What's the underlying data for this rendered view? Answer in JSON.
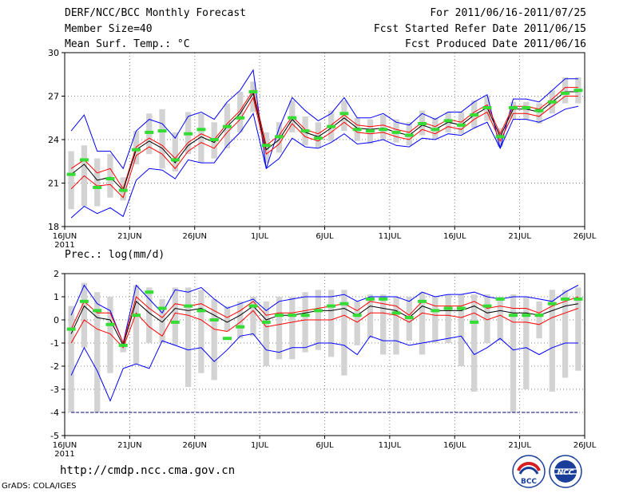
{
  "header": {
    "title": "DERF/NCC/BCC Monthly Forecast",
    "member_size": "Member Size=40",
    "variable": "Mean Surf. Temp.: °C",
    "period": "For 2011/06/16-2011/07/25",
    "started": "Fcst Started Refer Date 2011/06/15",
    "produced": "Fcst Produced Date 2011/06/16"
  },
  "footer": {
    "url": "http://cmdp.ncc.cma.gov.cn",
    "credit": "GrADS: COLA/IGES",
    "logo_left_text": "BCC",
    "logo_right_text": "NCC"
  },
  "colors": {
    "envelope": "#0000ff",
    "spread": "#ff0000",
    "mean": "#000000",
    "box": "#d3d3d3",
    "marker": "#33dd33",
    "missing": "#000080"
  },
  "chart_data": [
    {
      "type": "line",
      "title": "Mean Surf. Temp.: °C",
      "ylim": [
        18,
        30
      ],
      "yticks": [
        18,
        21,
        24,
        27,
        30
      ],
      "x_ticks": [
        {
          "day": 0,
          "label": "16JUN",
          "sub": "2011"
        },
        {
          "day": 5,
          "label": "21JUN"
        },
        {
          "day": 10,
          "label": "26JUN"
        },
        {
          "day": 15,
          "label": "1JUL"
        },
        {
          "day": 20,
          "label": "6JUL"
        },
        {
          "day": 25,
          "label": "11JUL"
        },
        {
          "day": 30,
          "label": "16JUL"
        },
        {
          "day": 35,
          "label": "21JUL"
        },
        {
          "day": 40,
          "label": "26JUL"
        }
      ],
      "days": [
        0,
        1,
        2,
        3,
        4,
        5,
        6,
        7,
        8,
        9,
        10,
        11,
        12,
        13,
        14,
        15,
        16,
        17,
        18,
        19,
        20,
        21,
        22,
        23,
        24,
        25,
        26,
        27,
        28,
        29,
        30,
        31,
        32,
        33,
        34,
        35,
        36,
        37,
        38,
        39
      ],
      "series": [
        {
          "name": "max",
          "values": [
            24.6,
            25.7,
            23.2,
            23.2,
            22.0,
            24.6,
            25.4,
            25.1,
            24.1,
            25.6,
            25.9,
            25.4,
            26.6,
            27.4,
            28.8,
            22.0,
            24.8,
            26.9,
            26.0,
            25.3,
            25.8,
            26.9,
            25.5,
            25.5,
            25.8,
            25.2,
            25.0,
            25.8,
            25.4,
            25.9,
            25.9,
            26.6,
            27.1,
            23.4,
            26.8,
            26.8,
            26.6,
            27.4,
            28.2,
            28.2
          ]
        },
        {
          "name": "upper",
          "values": [
            22.0,
            22.6,
            21.7,
            22.0,
            20.6,
            23.5,
            24.1,
            23.6,
            22.7,
            23.8,
            24.4,
            24.0,
            25.1,
            26.0,
            27.4,
            23.6,
            24.3,
            25.6,
            24.7,
            24.4,
            25.0,
            25.7,
            25.0,
            24.9,
            25.0,
            24.7,
            24.5,
            25.2,
            24.9,
            25.4,
            25.2,
            25.9,
            26.4,
            24.4,
            26.3,
            26.3,
            26.1,
            26.8,
            27.6,
            27.6
          ]
        },
        {
          "name": "mean",
          "values": [
            21.6,
            22.3,
            21.2,
            21.4,
            20.5,
            23.3,
            23.9,
            23.4,
            22.4,
            23.6,
            24.2,
            23.8,
            24.9,
            25.8,
            27.2,
            23.3,
            24.0,
            25.4,
            24.5,
            24.2,
            24.8,
            25.5,
            24.8,
            24.7,
            24.8,
            24.5,
            24.3,
            25.0,
            24.7,
            25.2,
            25.0,
            25.7,
            26.2,
            24.2,
            26.1,
            26.1,
            25.9,
            26.6,
            27.3,
            27.3
          ]
        },
        {
          "name": "lower",
          "values": [
            20.6,
            21.5,
            20.8,
            20.9,
            20.0,
            22.9,
            23.5,
            23.0,
            22.0,
            23.2,
            23.8,
            23.4,
            24.5,
            25.4,
            26.9,
            23.0,
            23.7,
            25.1,
            24.2,
            23.9,
            24.5,
            25.2,
            24.5,
            24.4,
            24.5,
            24.2,
            24.0,
            24.7,
            24.4,
            24.9,
            24.7,
            25.4,
            25.9,
            23.9,
            25.8,
            25.8,
            25.6,
            26.3,
            27.0,
            27.0
          ]
        },
        {
          "name": "min",
          "values": [
            18.6,
            19.4,
            18.9,
            19.3,
            18.7,
            21.2,
            22.0,
            21.9,
            21.3,
            22.6,
            22.4,
            22.4,
            23.6,
            24.5,
            25.8,
            22.0,
            22.7,
            24.1,
            23.5,
            23.4,
            23.8,
            24.4,
            23.7,
            23.8,
            24.0,
            23.6,
            23.5,
            24.1,
            24.0,
            24.4,
            24.3,
            24.8,
            25.2,
            23.4,
            25.4,
            25.4,
            25.2,
            25.6,
            26.1,
            26.3
          ]
        }
      ],
      "boxes": {
        "top": [
          23.2,
          23.6,
          22.7,
          23.0,
          21.4,
          24.6,
          25.8,
          26.1,
          24.5,
          25.9,
          25.8,
          25.2,
          26.5,
          27.3,
          28.0,
          24.5,
          25.2,
          26.7,
          25.6,
          25.2,
          26.0,
          26.7,
          25.5,
          25.4,
          25.7,
          25.4,
          25.2,
          26.0,
          25.5,
          25.9,
          25.9,
          26.7,
          27.0,
          24.8,
          26.6,
          26.6,
          26.5,
          27.4,
          28.3,
          28.3
        ],
        "bottom": [
          19.2,
          19.4,
          19.4,
          20.0,
          19.8,
          22.3,
          23.0,
          22.0,
          21.8,
          23.0,
          22.4,
          22.7,
          23.4,
          24.5,
          25.9,
          22.4,
          23.1,
          24.5,
          23.6,
          23.4,
          23.9,
          24.6,
          23.9,
          23.7,
          24.0,
          23.8,
          23.6,
          24.3,
          24.0,
          24.5,
          24.4,
          24.8,
          25.3,
          23.5,
          25.4,
          25.4,
          25.1,
          25.8,
          26.5,
          26.5
        ]
      },
      "markers": [
        21.6,
        22.6,
        20.7,
        21.3,
        20.5,
        23.3,
        24.5,
        24.6,
        22.6,
        24.4,
        24.7,
        24.0,
        24.9,
        25.5,
        27.3,
        23.6,
        24.2,
        25.5,
        24.6,
        24.1,
        24.9,
        25.8,
        24.7,
        24.6,
        24.7,
        24.5,
        24.3,
        25.1,
        24.7,
        25.3,
        25.0,
        25.7,
        26.2,
        24.2,
        26.2,
        26.2,
        26.0,
        26.6,
        27.2,
        27.4
      ]
    },
    {
      "type": "line",
      "title": "Prec.: log(mm/d)",
      "ylim": [
        -5,
        2
      ],
      "yticks": [
        -5,
        -4,
        -3,
        -2,
        -1,
        0,
        1,
        2
      ],
      "x_ticks": [
        {
          "day": 0,
          "label": "16JUN",
          "sub": "2011"
        },
        {
          "day": 5,
          "label": "21JUN"
        },
        {
          "day": 10,
          "label": "26JUN"
        },
        {
          "day": 15,
          "label": "1JUL"
        },
        {
          "day": 20,
          "label": "6JUL"
        },
        {
          "day": 25,
          "label": "11JUL"
        },
        {
          "day": 30,
          "label": "16JUL"
        },
        {
          "day": 35,
          "label": "21JUL"
        },
        {
          "day": 40,
          "label": "26JUL"
        }
      ],
      "days": [
        0,
        1,
        2,
        3,
        4,
        5,
        6,
        7,
        8,
        9,
        10,
        11,
        12,
        13,
        14,
        15,
        16,
        17,
        18,
        19,
        20,
        21,
        22,
        23,
        24,
        25,
        26,
        27,
        28,
        29,
        30,
        31,
        32,
        33,
        34,
        35,
        36,
        37,
        38,
        39
      ],
      "missing_line": -4,
      "series": [
        {
          "name": "max",
          "values": [
            0.2,
            1.5,
            0.7,
            0.4,
            -1.0,
            1.5,
            0.9,
            0.3,
            1.3,
            1.2,
            1.4,
            0.9,
            0.5,
            0.7,
            0.9,
            0.4,
            0.8,
            0.9,
            1.0,
            1.0,
            1.0,
            1.1,
            0.8,
            1.0,
            1.0,
            1.0,
            0.8,
            1.2,
            1.0,
            1.1,
            1.1,
            1.2,
            1.0,
            0.9,
            1.0,
            1.0,
            0.9,
            0.8,
            1.2,
            1.5
          ]
        },
        {
          "name": "upper",
          "values": [
            -0.4,
            0.8,
            0.3,
            0.3,
            -1.0,
            1.0,
            0.5,
            0.1,
            0.7,
            0.6,
            0.7,
            0.4,
            0.1,
            0.4,
            0.8,
            0.2,
            0.3,
            0.3,
            0.4,
            0.5,
            0.6,
            0.7,
            0.4,
            0.8,
            0.7,
            0.6,
            0.2,
            0.8,
            0.6,
            0.6,
            0.6,
            0.8,
            0.5,
            0.6,
            0.5,
            0.5,
            0.3,
            0.6,
            0.8,
            1.0
          ]
        },
        {
          "name": "mean",
          "values": [
            -0.6,
            0.6,
            0.1,
            0.0,
            -1.1,
            0.8,
            0.3,
            -0.1,
            0.5,
            0.4,
            0.5,
            0.2,
            -0.1,
            0.2,
            0.6,
            0.0,
            0.2,
            0.2,
            0.3,
            0.4,
            0.4,
            0.5,
            0.2,
            0.6,
            0.5,
            0.4,
            0.1,
            0.6,
            0.4,
            0.4,
            0.4,
            0.6,
            0.3,
            0.4,
            0.3,
            0.3,
            0.2,
            0.4,
            0.6,
            0.7
          ]
        },
        {
          "name": "lower",
          "values": [
            -1.0,
            0.0,
            -0.4,
            -0.6,
            -1.2,
            0.3,
            -0.3,
            -0.7,
            0.3,
            0.2,
            0.0,
            -0.4,
            -0.5,
            -0.1,
            0.4,
            -0.3,
            -0.2,
            -0.1,
            0.0,
            0.0,
            0.0,
            0.2,
            -0.1,
            0.3,
            0.3,
            0.2,
            -0.1,
            0.3,
            0.2,
            0.2,
            0.1,
            0.3,
            0.0,
            0.2,
            -0.1,
            -0.1,
            -0.2,
            0.1,
            0.3,
            0.5
          ]
        },
        {
          "name": "min",
          "values": [
            -2.4,
            -1.2,
            -2.2,
            -3.5,
            -2.1,
            -1.9,
            -2.1,
            -0.9,
            -1.1,
            -1.3,
            -1.2,
            -1.8,
            -1.3,
            -0.7,
            -0.6,
            -1.3,
            -1.4,
            -1.2,
            -1.2,
            -1.0,
            -1.0,
            -1.1,
            -1.5,
            -0.7,
            -0.9,
            -0.9,
            -1.1,
            -1.0,
            -0.9,
            -0.8,
            -0.7,
            -1.5,
            -1.2,
            -0.8,
            -1.3,
            -1.2,
            -1.5,
            -1.2,
            -1.0,
            -1.0
          ]
        }
      ],
      "boxes": {
        "top": [
          0.6,
          1.6,
          1.2,
          1.0,
          -0.9,
          1.5,
          1.4,
          0.9,
          1.4,
          1.4,
          1.3,
          0.9,
          0.6,
          0.8,
          1.0,
          0.8,
          1.0,
          1.0,
          1.2,
          1.3,
          1.3,
          1.3,
          0.8,
          1.1,
          1.1,
          1.0,
          1.0,
          1.2,
          1.0,
          1.1,
          1.1,
          1.1,
          1.1,
          1.0,
          1.1,
          1.0,
          0.8,
          1.3,
          1.3,
          1.4
        ],
        "bottom": [
          -4.0,
          -1.2,
          -4.0,
          -2.3,
          -1.4,
          -1.9,
          -1.0,
          -1.0,
          -1.1,
          -2.9,
          -2.3,
          -2.6,
          -0.5,
          -0.8,
          -0.7,
          -2.0,
          -1.7,
          -1.7,
          -1.4,
          -1.3,
          -1.6,
          -2.4,
          -1.1,
          -0.8,
          -1.5,
          -1.5,
          -0.9,
          -1.5,
          -1.0,
          -1.0,
          -2.0,
          -3.1,
          -1.0,
          -0.9,
          -4.0,
          -3.0,
          -0.8,
          -3.1,
          -2.5,
          -2.2
        ]
      },
      "markers": [
        -0.4,
        0.8,
        0.4,
        -0.2,
        -1.1,
        0.2,
        1.2,
        0.5,
        -0.1,
        0.6,
        0.4,
        0.0,
        -0.8,
        -0.3,
        0.6,
        -0.1,
        0.2,
        0.2,
        0.2,
        0.4,
        0.6,
        0.7,
        0.2,
        0.9,
        0.9,
        0.3,
        0.1,
        0.8,
        0.4,
        0.5,
        0.5,
        -0.1,
        0.6,
        0.9,
        0.2,
        0.2,
        0.2,
        0.7,
        0.9,
        0.9
      ]
    }
  ]
}
